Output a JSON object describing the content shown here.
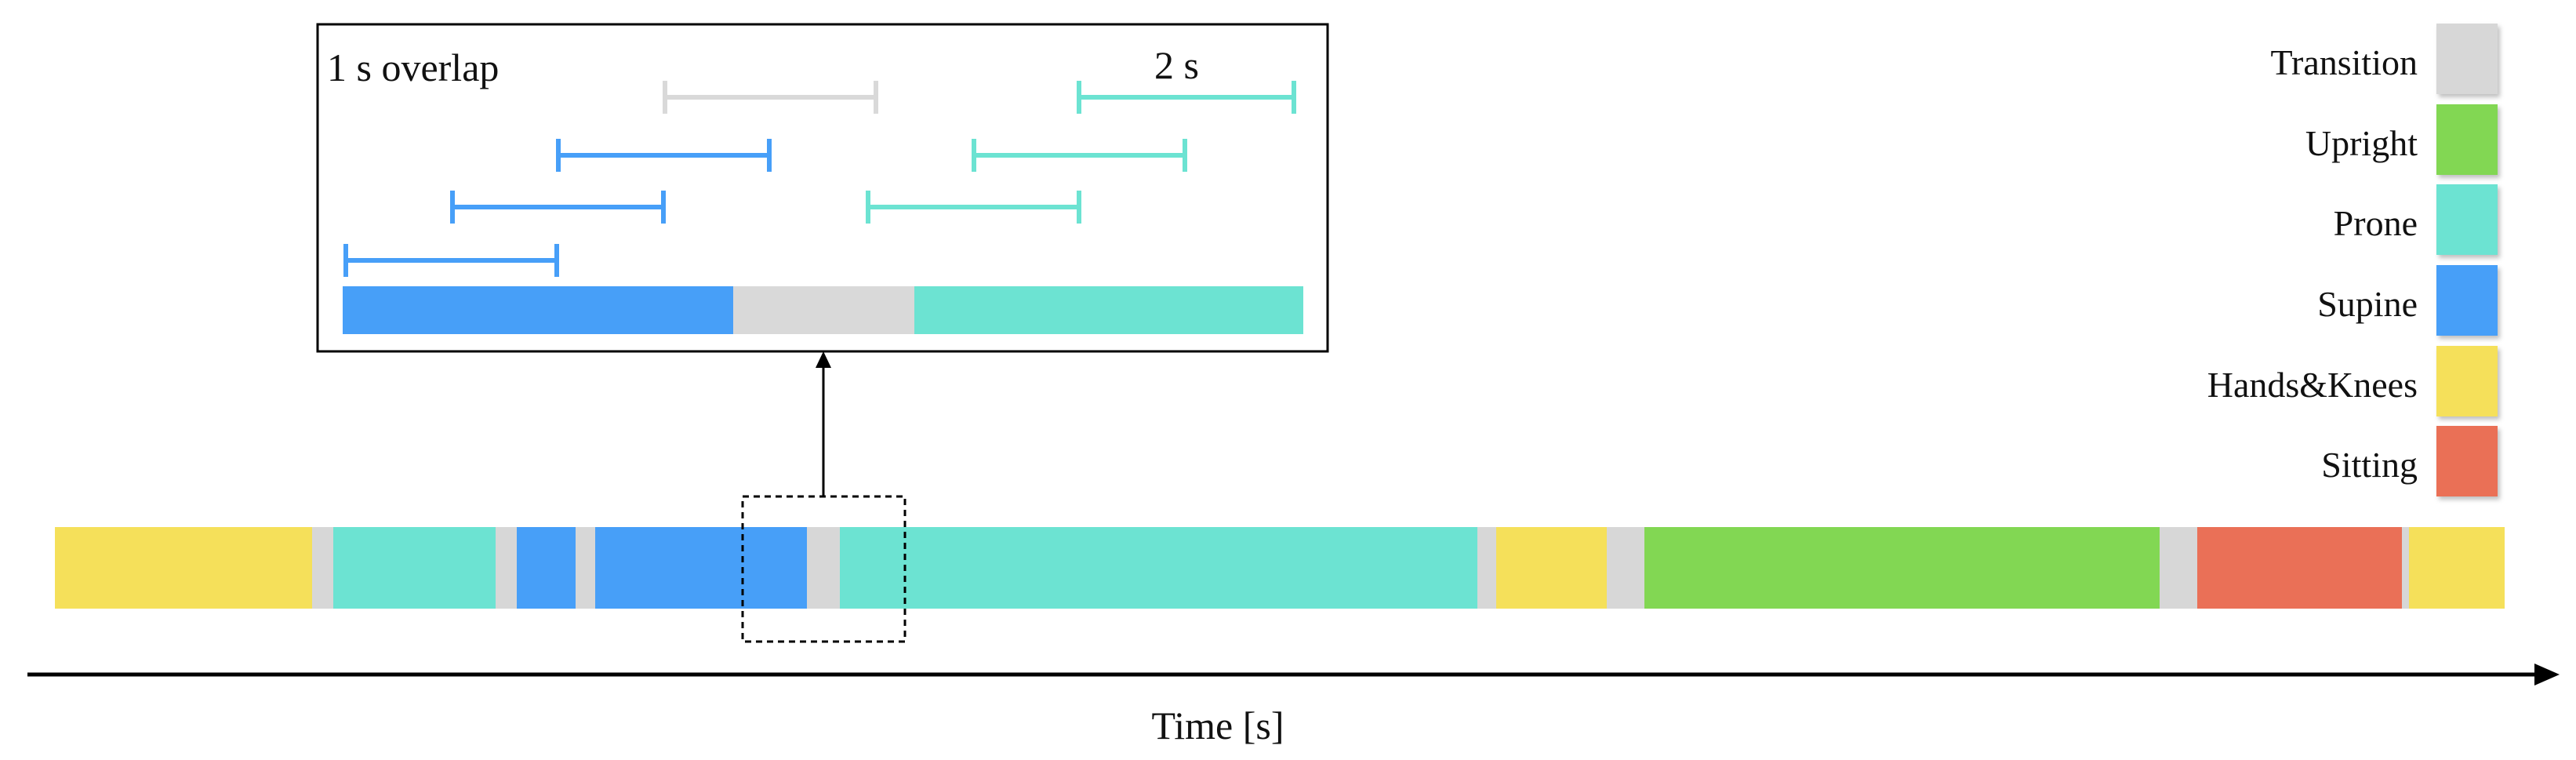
{
  "colors": {
    "transition": "#d7d7d7",
    "upright": "#82d753",
    "prone": "#6ce3d2",
    "supine": "#479ff8",
    "hands_knees": "#f5e05a",
    "sitting": "#ea7057",
    "window_transition": "#d9d9d9",
    "window_supine": "#479ff8",
    "window_prone": "#6ce3d2",
    "axis": "#000000"
  },
  "legend": [
    {
      "key": "transition",
      "label": "Transition",
      "icon": "transition-swatch"
    },
    {
      "key": "upright",
      "label": "Upright",
      "icon": "upright-swatch"
    },
    {
      "key": "prone",
      "label": "Prone",
      "icon": "prone-swatch"
    },
    {
      "key": "supine",
      "label": "Supine",
      "icon": "supine-swatch"
    },
    {
      "key": "hands_knees",
      "label": "Hands&Knees",
      "icon": "hands-knees-swatch"
    },
    {
      "key": "sitting",
      "label": "Sitting",
      "icon": "sitting-swatch"
    }
  ],
  "timeline": {
    "axis_label": "Time [s]",
    "sequence": [
      "hands_knees",
      "transition",
      "prone",
      "transition",
      "supine",
      "transition",
      "supine",
      "transition",
      "prone",
      "transition",
      "hands_knees",
      "transition",
      "upright",
      "transition",
      "sitting",
      "transition",
      "hands_knees"
    ]
  },
  "zoom": {
    "overlap_label": "1 s overlap",
    "window_label": "2 s",
    "bar_sequence": [
      "supine",
      "transition",
      "prone"
    ],
    "window_colors": [
      "supine",
      "supine",
      "supine",
      "transition",
      "prone",
      "prone",
      "prone"
    ]
  }
}
